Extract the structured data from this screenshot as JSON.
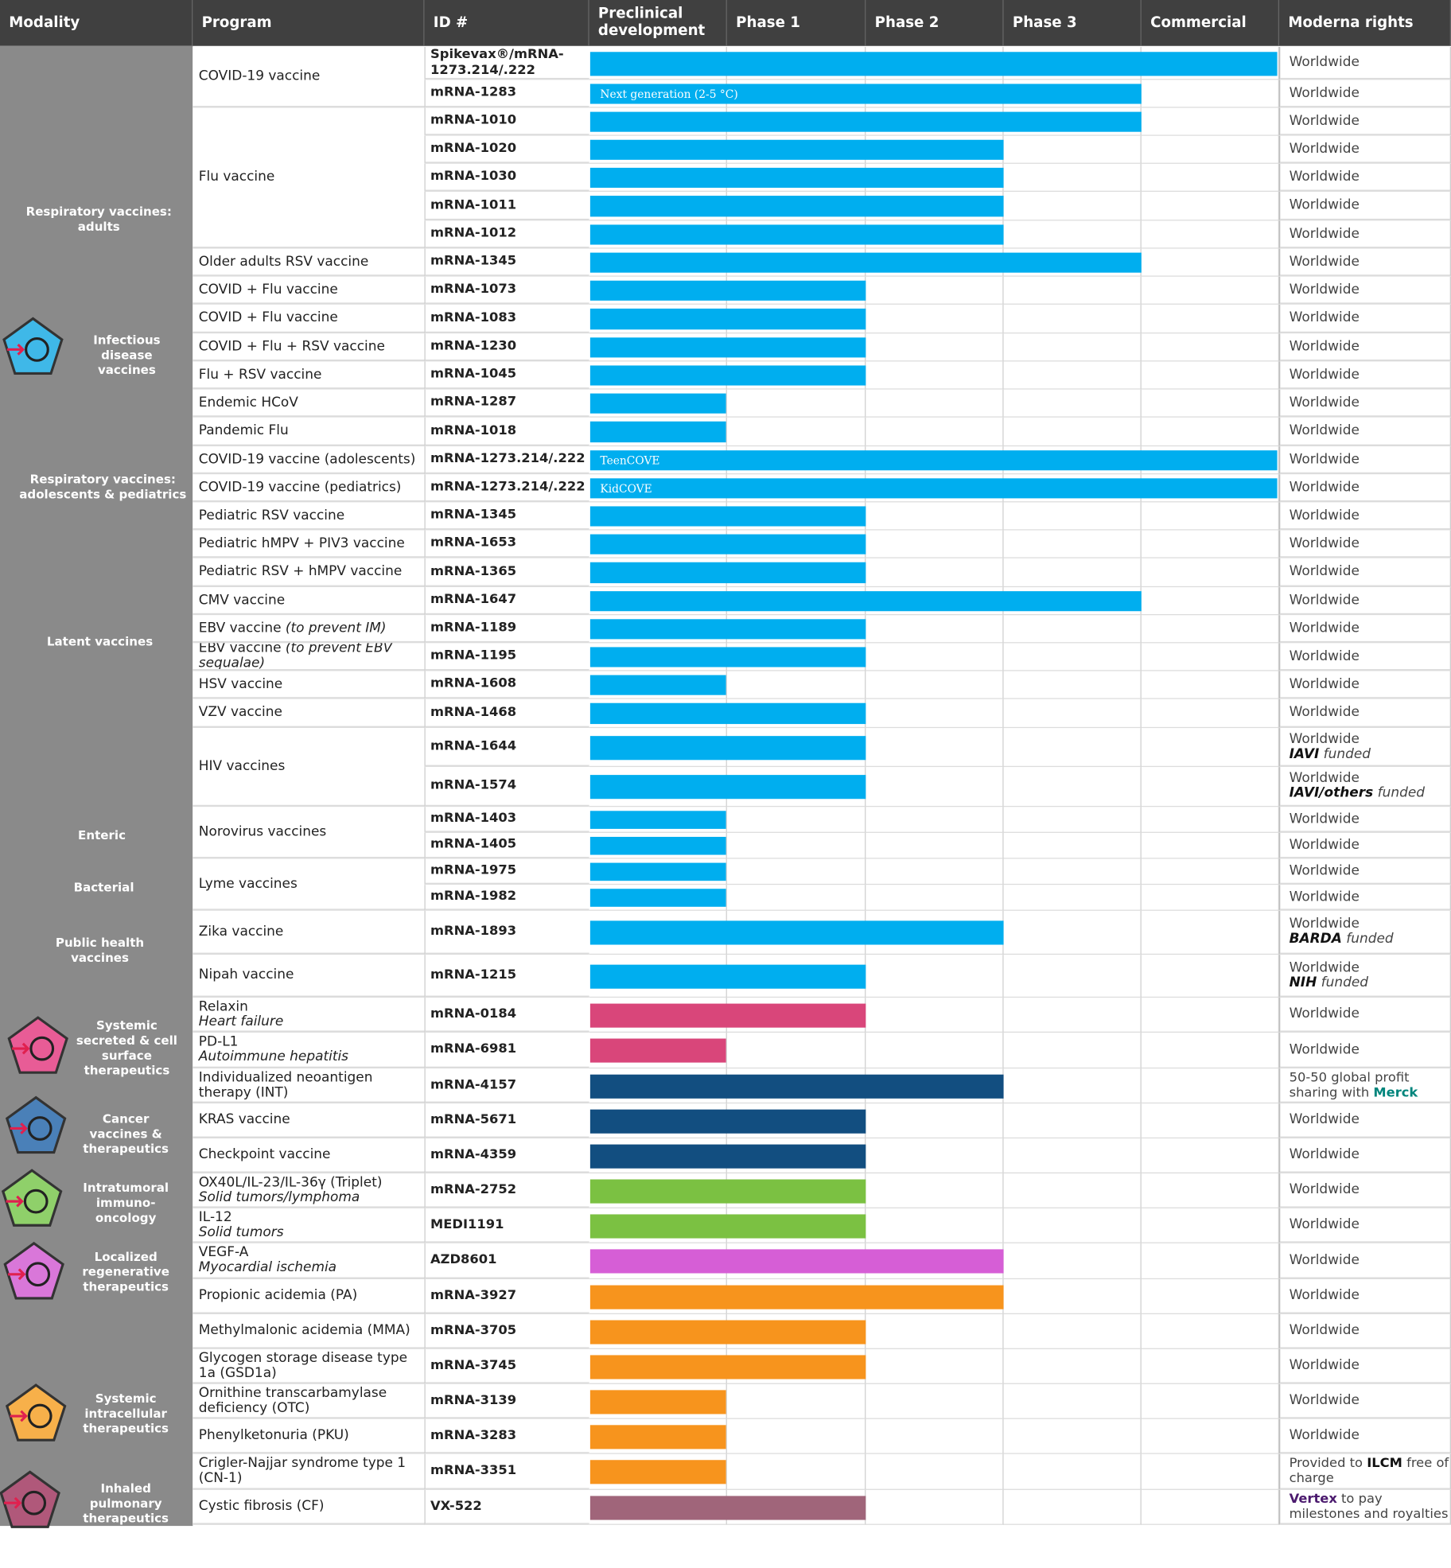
{
  "header": [
    "Modality",
    "Program",
    "ID #",
    "Preclinical development",
    "Phase 1",
    "Phase 2",
    "Phase 3",
    "Commercial",
    "Moderna rights"
  ],
  "phases": [
    "Preclinical development",
    "Phase 1",
    "Phase 2",
    "Phase 3",
    "Commercial"
  ],
  "colors": {
    "header": "#404040",
    "modality_bg": "#8a8a8a",
    "blue": "#00aeef",
    "pink": "#d9467a",
    "navy": "#124e80",
    "green": "#7bc142",
    "magenta": "#d65ed6",
    "orange": "#f7941d",
    "mauve": "#a0657a",
    "merck": "#00857c",
    "vertex": "#4b1a6e"
  },
  "modalities": [
    {
      "label": "Respiratory vaccines: adults",
      "lines": [
        "Respiratory vaccines:",
        "adults"
      ]
    },
    {
      "label": "Infectious disease vaccines",
      "lines": [
        "Infectious",
        "disease",
        "vaccines"
      ],
      "icon": "syringe-icon",
      "color": "#3fb8e8"
    },
    {
      "label": "Respiratory vaccines: adolescents & pediatrics",
      "lines": [
        "Respiratory vaccines:",
        "adolescents & pediatrics"
      ]
    },
    {
      "label": "Latent vaccines",
      "lines": [
        "Latent vaccines"
      ]
    },
    {
      "label": "Enteric",
      "lines": [
        "Enteric"
      ]
    },
    {
      "label": "Bacterial",
      "lines": [
        "Bacterial"
      ]
    },
    {
      "label": "Public health vaccines",
      "lines": [
        "Public health",
        "vaccines"
      ]
    },
    {
      "label": "Systemic secreted & cell surface therapeutics",
      "lines": [
        "Systemic",
        "secreted & cell",
        "surface",
        "therapeutics"
      ],
      "icon": "person-icon",
      "color": "#e85c96"
    },
    {
      "label": "Cancer vaccines & therapeutics",
      "lines": [
        "Cancer",
        "vaccines &",
        "therapeutics"
      ],
      "icon": "vials-icon",
      "color": "#4a80b8"
    },
    {
      "label": "Intratumoral immuno-oncology",
      "lines": [
        "Intratumoral",
        "immuno-",
        "oncology"
      ],
      "icon": "tumor-cell-icon",
      "color": "#8fd06a"
    },
    {
      "label": "Localized regenerative therapeutics",
      "lines": [
        "Localized",
        "regenerative",
        "therapeutics"
      ],
      "icon": "regeneration-icon",
      "color": "#d977d9"
    },
    {
      "label": "Systemic intracellular therapeutics",
      "lines": [
        "Systemic",
        "intracellular",
        "therapeutics"
      ],
      "icon": "cell-icon",
      "color": "#f7b04a"
    },
    {
      "label": "Inhaled pulmonary therapeutics",
      "lines": [
        "Inhaled",
        "pulmonary",
        "therapeutics"
      ],
      "icon": "lungs-icon",
      "color": "#b0587a"
    }
  ],
  "programs": [
    {
      "name": "COVID-19 vaccine",
      "rows": 2
    },
    {
      "name": "Flu vaccine",
      "rows": 5
    },
    {
      "name": "Older adults RSV vaccine",
      "rows": 1
    },
    {
      "name": "COVID + Flu vaccine",
      "rows": 1
    },
    {
      "name": "COVID + Flu vaccine",
      "rows": 1
    },
    {
      "name": "COVID + Flu + RSV vaccine",
      "rows": 1
    },
    {
      "name": "Flu + RSV vaccine",
      "rows": 1
    },
    {
      "name": "Endemic HCoV",
      "rows": 1
    },
    {
      "name": "Pandemic Flu",
      "rows": 1
    },
    {
      "name": "COVID-19 vaccine (adolescents)",
      "rows": 1
    },
    {
      "name": "COVID-19 vaccine (pediatrics)",
      "rows": 1
    },
    {
      "name": "Pediatric RSV vaccine",
      "rows": 1
    },
    {
      "name": "Pediatric hMPV + PIV3 vaccine",
      "rows": 1
    },
    {
      "name": "Pediatric RSV + hMPV vaccine",
      "rows": 1
    },
    {
      "name": "CMV vaccine",
      "rows": 1
    },
    {
      "name": "EBV vaccine",
      "sub": "(to prevent IM)",
      "rows": 1
    },
    {
      "name": "EBV vaccine",
      "sub": "(to prevent EBV sequalae)",
      "rows": 1
    },
    {
      "name": "HSV vaccine",
      "rows": 1
    },
    {
      "name": "VZV vaccine",
      "rows": 1
    },
    {
      "name": "HIV vaccines",
      "rows": 2
    },
    {
      "name": "Norovirus vaccines",
      "rows": 2
    },
    {
      "name": "Lyme vaccines",
      "rows": 2
    },
    {
      "name": "Zika vaccine",
      "rows": 1
    },
    {
      "name": "Nipah vaccine",
      "rows": 1
    },
    {
      "name": "Relaxin",
      "sub": "Heart failure",
      "rows": 1
    },
    {
      "name": "PD-L1",
      "sub": "Autoimmune hepatitis",
      "rows": 1
    },
    {
      "name": "Individualized neoantigen therapy (INT)",
      "rows": 1
    },
    {
      "name": "KRAS vaccine",
      "rows": 1
    },
    {
      "name": "Checkpoint vaccine",
      "rows": 1
    },
    {
      "name": "OX40L/IL-23/IL-36γ  (Triplet)",
      "sub": "Solid tumors/lymphoma",
      "rows": 1
    },
    {
      "name": "IL-12",
      "sub": "Solid tumors",
      "rows": 1
    },
    {
      "name": "VEGF-A",
      "sub": "Myocardial ischemia",
      "rows": 1
    },
    {
      "name": "Propionic acidemia  (PA)",
      "rows": 1
    },
    {
      "name": "Methylmalonic acidemia (MMA)",
      "rows": 1
    },
    {
      "name": "Glycogen storage disease type 1a (GSD1a)",
      "rows": 1
    },
    {
      "name": "Ornithine transcarbamylase deficiency (OTC)",
      "rows": 1
    },
    {
      "name": "Phenylketonuria (PKU)",
      "rows": 1
    },
    {
      "name": "Crigler-Najjar syndrome type 1 (CN-1)",
      "rows": 1
    },
    {
      "name": "Cystic fibrosis (CF)",
      "rows": 1
    }
  ],
  "rows": [
    {
      "id": "Spikevax®/mRNA-1273.214/.222",
      "stage": "Commercial",
      "color": "blue",
      "rights": [
        "Worldwide"
      ]
    },
    {
      "id": "mRNA-1283",
      "stage": "Phase 3",
      "color": "blue",
      "bar_label": "Next generation (2-5 °C)",
      "rights": [
        "Worldwide"
      ]
    },
    {
      "id": "mRNA-1010",
      "stage": "Phase 3",
      "color": "blue",
      "rights": [
        "Worldwide"
      ]
    },
    {
      "id": "mRNA-1020",
      "stage": "Phase 2",
      "color": "blue",
      "rights": [
        "Worldwide"
      ]
    },
    {
      "id": "mRNA-1030",
      "stage": "Phase 2",
      "color": "blue",
      "rights": [
        "Worldwide"
      ]
    },
    {
      "id": "mRNA-1011",
      "stage": "Phase 2",
      "color": "blue",
      "rights": [
        "Worldwide"
      ]
    },
    {
      "id": "mRNA-1012",
      "stage": "Phase 2",
      "color": "blue",
      "rights": [
        "Worldwide"
      ]
    },
    {
      "id": "mRNA-1345",
      "stage": "Phase 3",
      "color": "blue",
      "rights": [
        "Worldwide"
      ]
    },
    {
      "id": "mRNA-1073",
      "stage": "Phase 1",
      "color": "blue",
      "rights": [
        "Worldwide"
      ]
    },
    {
      "id": "mRNA-1083",
      "stage": "Phase 1",
      "color": "blue",
      "rights": [
        "Worldwide"
      ]
    },
    {
      "id": "mRNA-1230",
      "stage": "Phase 1",
      "color": "blue",
      "rights": [
        "Worldwide"
      ]
    },
    {
      "id": "mRNA-1045",
      "stage": "Phase 1",
      "color": "blue",
      "rights": [
        "Worldwide"
      ]
    },
    {
      "id": "mRNA-1287",
      "stage": "Preclinical development",
      "color": "blue",
      "rights": [
        "Worldwide"
      ]
    },
    {
      "id": "mRNA-1018",
      "stage": "Preclinical development",
      "color": "blue",
      "rights": [
        "Worldwide"
      ]
    },
    {
      "id": "mRNA-1273.214/.222",
      "stage": "Commercial",
      "color": "blue",
      "bar_label": "TeenCOVE",
      "rights": [
        "Worldwide"
      ]
    },
    {
      "id": "mRNA-1273.214/.222",
      "stage": "Commercial",
      "color": "blue",
      "bar_label": "KidCOVE",
      "rights": [
        "Worldwide"
      ]
    },
    {
      "id": "mRNA-1345",
      "stage": "Phase 1",
      "color": "blue",
      "rights": [
        "Worldwide"
      ]
    },
    {
      "id": "mRNA-1653",
      "stage": "Phase 1",
      "color": "blue",
      "rights": [
        "Worldwide"
      ]
    },
    {
      "id": "mRNA-1365",
      "stage": "Phase 1",
      "color": "blue",
      "rights": [
        "Worldwide"
      ]
    },
    {
      "id": "mRNA-1647",
      "stage": "Phase 3",
      "color": "blue",
      "rights": [
        "Worldwide"
      ]
    },
    {
      "id": "mRNA-1189",
      "stage": "Phase 1",
      "color": "blue",
      "rights": [
        "Worldwide"
      ]
    },
    {
      "id": "mRNA-1195",
      "stage": "Phase 1",
      "color": "blue",
      "rights": [
        "Worldwide"
      ]
    },
    {
      "id": "mRNA-1608",
      "stage": "Preclinical development",
      "color": "blue",
      "rights": [
        "Worldwide"
      ]
    },
    {
      "id": "mRNA-1468",
      "stage": "Phase 1",
      "color": "blue",
      "rights": [
        "Worldwide"
      ]
    },
    {
      "id": "mRNA-1644",
      "stage": "Phase 1",
      "color": "blue",
      "rights": [
        "Worldwide",
        "IAVI",
        " funded"
      ]
    },
    {
      "id": "mRNA-1574",
      "stage": "Phase 1",
      "color": "blue",
      "rights": [
        "Worldwide",
        "IAVI/others",
        " funded"
      ]
    },
    {
      "id": "mRNA-1403",
      "stage": "Preclinical development",
      "color": "blue",
      "rights": [
        "Worldwide"
      ]
    },
    {
      "id": "mRNA-1405",
      "stage": "Preclinical development",
      "color": "blue",
      "rights": [
        "Worldwide"
      ]
    },
    {
      "id": "mRNA-1975",
      "stage": "Preclinical development",
      "color": "blue",
      "rights": [
        "Worldwide"
      ]
    },
    {
      "id": "mRNA-1982",
      "stage": "Preclinical development",
      "color": "blue",
      "rights": [
        "Worldwide"
      ]
    },
    {
      "id": "mRNA-1893",
      "stage": "Phase 2",
      "color": "blue",
      "rights": [
        "Worldwide",
        "BARDA",
        " funded"
      ]
    },
    {
      "id": "mRNA-1215",
      "stage": "Phase 1",
      "color": "blue",
      "rights": [
        "Worldwide",
        "NIH",
        " funded"
      ]
    },
    {
      "id": "mRNA-0184",
      "stage": "Phase 1",
      "color": "pink",
      "rights": [
        "Worldwide"
      ]
    },
    {
      "id": "mRNA-6981",
      "stage": "Preclinical development",
      "color": "pink",
      "rights": [
        "Worldwide"
      ]
    },
    {
      "id": "mRNA-4157",
      "stage": "Phase 2",
      "color": "navy",
      "rights": [
        "50-50 global profit sharing with ",
        "Merck",
        ""
      ]
    },
    {
      "id": "mRNA-5671",
      "stage": "Phase 1",
      "color": "navy",
      "rights": [
        "Worldwide"
      ]
    },
    {
      "id": "mRNA-4359",
      "stage": "Phase 1",
      "color": "navy",
      "rights": [
        "Worldwide"
      ]
    },
    {
      "id": "mRNA-2752",
      "stage": "Phase 1",
      "color": "green",
      "rights": [
        "Worldwide"
      ]
    },
    {
      "id": "MEDI1191",
      "stage": "Phase 1",
      "color": "green",
      "rights": [
        "Worldwide"
      ]
    },
    {
      "id": "AZD8601",
      "stage": "Phase 2",
      "color": "magenta",
      "rights": [
        "Worldwide"
      ]
    },
    {
      "id": "mRNA-3927",
      "stage": "Phase 2",
      "color": "orange",
      "rights": [
        "Worldwide"
      ]
    },
    {
      "id": "mRNA-3705",
      "stage": "Phase 1",
      "color": "orange",
      "rights": [
        "Worldwide"
      ]
    },
    {
      "id": "mRNA-3745",
      "stage": "Phase 1",
      "color": "orange",
      "rights": [
        "Worldwide"
      ]
    },
    {
      "id": "mRNA-3139",
      "stage": "Preclinical development",
      "color": "orange",
      "rights": [
        "Worldwide"
      ]
    },
    {
      "id": "mRNA-3283",
      "stage": "Preclinical development",
      "color": "orange",
      "rights": [
        "Worldwide"
      ]
    },
    {
      "id": "mRNA-3351",
      "stage": "Preclinical development",
      "color": "orange",
      "rights": [
        "Provided to ",
        "ILCM",
        " free of charge"
      ]
    },
    {
      "id": "VX-522",
      "stage": "Phase 1",
      "color": "mauve",
      "rights": [
        "",
        "Vertex",
        " to pay milestones and royalties"
      ]
    }
  ]
}
